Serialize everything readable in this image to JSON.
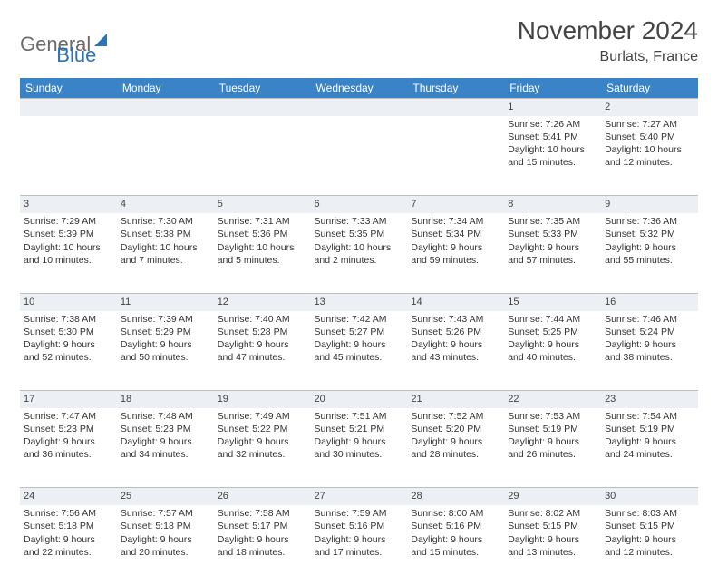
{
  "logo": {
    "word1": "General",
    "word2": "Blue"
  },
  "title": "November 2024",
  "location": "Burlats, France",
  "weekdays": [
    "Sunday",
    "Monday",
    "Tuesday",
    "Wednesday",
    "Thursday",
    "Friday",
    "Saturday"
  ],
  "colors": {
    "header_bg": "#3a83c6",
    "header_text": "#ffffff",
    "daynum_bg": "#eceff3",
    "daynum_border": "#bfbfbf",
    "body_text": "#333333",
    "logo_gray": "#6b6b6b",
    "logo_blue": "#2d72b8"
  },
  "fonts": {
    "month_title_size": 28,
    "location_size": 16,
    "weekday_size": 12,
    "daynum_size": 11,
    "cell_size": 10.5
  },
  "weeks": [
    {
      "daynums": [
        "",
        "",
        "",
        "",
        "",
        "1",
        "2"
      ],
      "cells": [
        {
          "sunrise": "",
          "sunset": "",
          "daylight": ""
        },
        {
          "sunrise": "",
          "sunset": "",
          "daylight": ""
        },
        {
          "sunrise": "",
          "sunset": "",
          "daylight": ""
        },
        {
          "sunrise": "",
          "sunset": "",
          "daylight": ""
        },
        {
          "sunrise": "",
          "sunset": "",
          "daylight": ""
        },
        {
          "sunrise": "Sunrise: 7:26 AM",
          "sunset": "Sunset: 5:41 PM",
          "daylight": "Daylight: 10 hours and 15 minutes."
        },
        {
          "sunrise": "Sunrise: 7:27 AM",
          "sunset": "Sunset: 5:40 PM",
          "daylight": "Daylight: 10 hours and 12 minutes."
        }
      ]
    },
    {
      "daynums": [
        "3",
        "4",
        "5",
        "6",
        "7",
        "8",
        "9"
      ],
      "cells": [
        {
          "sunrise": "Sunrise: 7:29 AM",
          "sunset": "Sunset: 5:39 PM",
          "daylight": "Daylight: 10 hours and 10 minutes."
        },
        {
          "sunrise": "Sunrise: 7:30 AM",
          "sunset": "Sunset: 5:38 PM",
          "daylight": "Daylight: 10 hours and 7 minutes."
        },
        {
          "sunrise": "Sunrise: 7:31 AM",
          "sunset": "Sunset: 5:36 PM",
          "daylight": "Daylight: 10 hours and 5 minutes."
        },
        {
          "sunrise": "Sunrise: 7:33 AM",
          "sunset": "Sunset: 5:35 PM",
          "daylight": "Daylight: 10 hours and 2 minutes."
        },
        {
          "sunrise": "Sunrise: 7:34 AM",
          "sunset": "Sunset: 5:34 PM",
          "daylight": "Daylight: 9 hours and 59 minutes."
        },
        {
          "sunrise": "Sunrise: 7:35 AM",
          "sunset": "Sunset: 5:33 PM",
          "daylight": "Daylight: 9 hours and 57 minutes."
        },
        {
          "sunrise": "Sunrise: 7:36 AM",
          "sunset": "Sunset: 5:32 PM",
          "daylight": "Daylight: 9 hours and 55 minutes."
        }
      ]
    },
    {
      "daynums": [
        "10",
        "11",
        "12",
        "13",
        "14",
        "15",
        "16"
      ],
      "cells": [
        {
          "sunrise": "Sunrise: 7:38 AM",
          "sunset": "Sunset: 5:30 PM",
          "daylight": "Daylight: 9 hours and 52 minutes."
        },
        {
          "sunrise": "Sunrise: 7:39 AM",
          "sunset": "Sunset: 5:29 PM",
          "daylight": "Daylight: 9 hours and 50 minutes."
        },
        {
          "sunrise": "Sunrise: 7:40 AM",
          "sunset": "Sunset: 5:28 PM",
          "daylight": "Daylight: 9 hours and 47 minutes."
        },
        {
          "sunrise": "Sunrise: 7:42 AM",
          "sunset": "Sunset: 5:27 PM",
          "daylight": "Daylight: 9 hours and 45 minutes."
        },
        {
          "sunrise": "Sunrise: 7:43 AM",
          "sunset": "Sunset: 5:26 PM",
          "daylight": "Daylight: 9 hours and 43 minutes."
        },
        {
          "sunrise": "Sunrise: 7:44 AM",
          "sunset": "Sunset: 5:25 PM",
          "daylight": "Daylight: 9 hours and 40 minutes."
        },
        {
          "sunrise": "Sunrise: 7:46 AM",
          "sunset": "Sunset: 5:24 PM",
          "daylight": "Daylight: 9 hours and 38 minutes."
        }
      ]
    },
    {
      "daynums": [
        "17",
        "18",
        "19",
        "20",
        "21",
        "22",
        "23"
      ],
      "cells": [
        {
          "sunrise": "Sunrise: 7:47 AM",
          "sunset": "Sunset: 5:23 PM",
          "daylight": "Daylight: 9 hours and 36 minutes."
        },
        {
          "sunrise": "Sunrise: 7:48 AM",
          "sunset": "Sunset: 5:23 PM",
          "daylight": "Daylight: 9 hours and 34 minutes."
        },
        {
          "sunrise": "Sunrise: 7:49 AM",
          "sunset": "Sunset: 5:22 PM",
          "daylight": "Daylight: 9 hours and 32 minutes."
        },
        {
          "sunrise": "Sunrise: 7:51 AM",
          "sunset": "Sunset: 5:21 PM",
          "daylight": "Daylight: 9 hours and 30 minutes."
        },
        {
          "sunrise": "Sunrise: 7:52 AM",
          "sunset": "Sunset: 5:20 PM",
          "daylight": "Daylight: 9 hours and 28 minutes."
        },
        {
          "sunrise": "Sunrise: 7:53 AM",
          "sunset": "Sunset: 5:19 PM",
          "daylight": "Daylight: 9 hours and 26 minutes."
        },
        {
          "sunrise": "Sunrise: 7:54 AM",
          "sunset": "Sunset: 5:19 PM",
          "daylight": "Daylight: 9 hours and 24 minutes."
        }
      ]
    },
    {
      "daynums": [
        "24",
        "25",
        "26",
        "27",
        "28",
        "29",
        "30"
      ],
      "cells": [
        {
          "sunrise": "Sunrise: 7:56 AM",
          "sunset": "Sunset: 5:18 PM",
          "daylight": "Daylight: 9 hours and 22 minutes."
        },
        {
          "sunrise": "Sunrise: 7:57 AM",
          "sunset": "Sunset: 5:18 PM",
          "daylight": "Daylight: 9 hours and 20 minutes."
        },
        {
          "sunrise": "Sunrise: 7:58 AM",
          "sunset": "Sunset: 5:17 PM",
          "daylight": "Daylight: 9 hours and 18 minutes."
        },
        {
          "sunrise": "Sunrise: 7:59 AM",
          "sunset": "Sunset: 5:16 PM",
          "daylight": "Daylight: 9 hours and 17 minutes."
        },
        {
          "sunrise": "Sunrise: 8:00 AM",
          "sunset": "Sunset: 5:16 PM",
          "daylight": "Daylight: 9 hours and 15 minutes."
        },
        {
          "sunrise": "Sunrise: 8:02 AM",
          "sunset": "Sunset: 5:15 PM",
          "daylight": "Daylight: 9 hours and 13 minutes."
        },
        {
          "sunrise": "Sunrise: 8:03 AM",
          "sunset": "Sunset: 5:15 PM",
          "daylight": "Daylight: 9 hours and 12 minutes."
        }
      ]
    }
  ]
}
